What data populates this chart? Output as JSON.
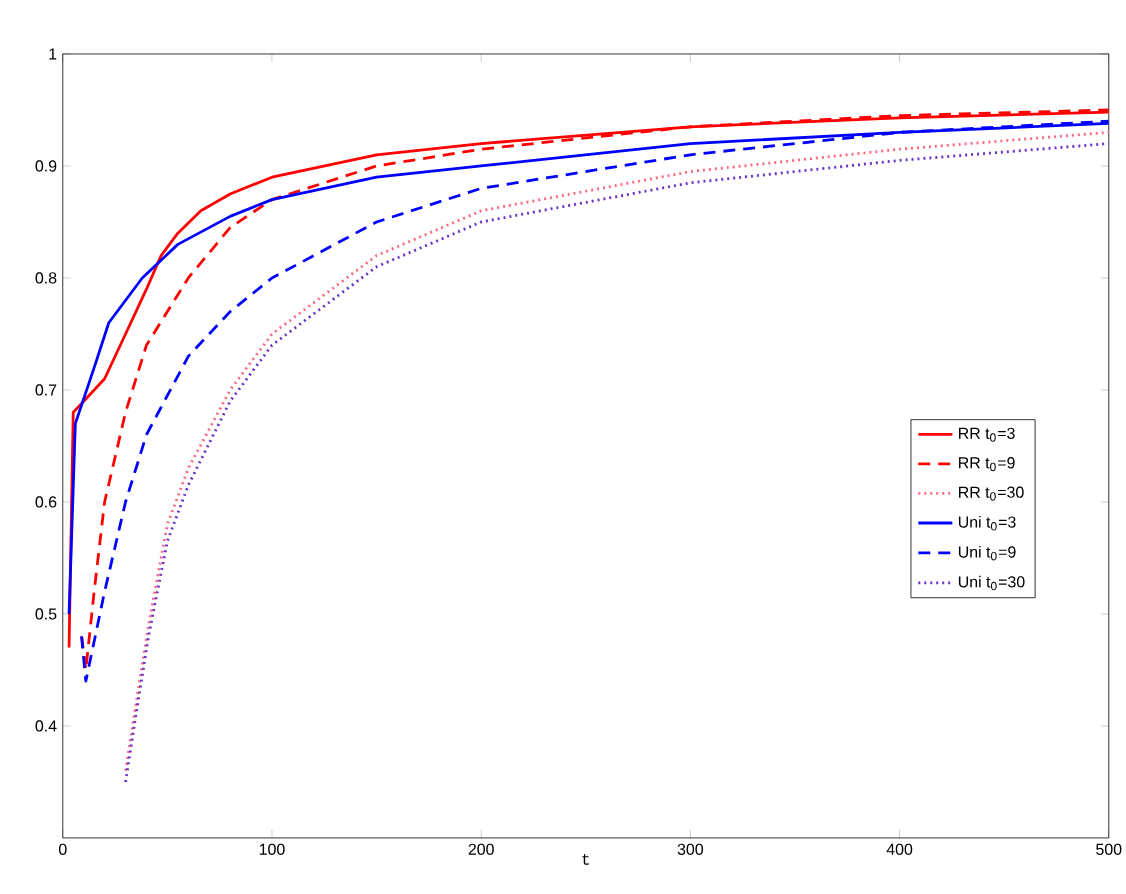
{
  "chart_data": {
    "type": "line",
    "xlabel": "t",
    "xlim": [
      0,
      500
    ],
    "ylim": [
      0.3,
      1
    ],
    "xticks": [
      0,
      100,
      200,
      300,
      400,
      500
    ],
    "yticks": [
      0.4,
      0.5,
      0.6,
      0.7,
      0.8,
      0.9,
      1
    ],
    "grid": false,
    "legend": "right",
    "marker": "none",
    "series": [
      {
        "name": "RR t$_{0}$=3",
        "color": "#ff0000",
        "line_style": "solid",
        "x": [
          3,
          5,
          10,
          20,
          30,
          40,
          47,
          55,
          66,
          80,
          100,
          150,
          200,
          300,
          400,
          500
        ],
        "values": [
          0.47,
          0.68,
          0.69,
          0.71,
          0.75,
          0.79,
          0.82,
          0.84,
          0.86,
          0.875,
          0.89,
          0.91,
          0.92,
          0.935,
          0.943,
          0.948
        ]
      },
      {
        "name": "RR t$_{0}$=9",
        "color": "#ff0000",
        "line_style": "dashed",
        "x": [
          9,
          11,
          15,
          20,
          30,
          40,
          60,
          80,
          100,
          150,
          200,
          300,
          400,
          500
        ],
        "values": [
          0.48,
          0.45,
          0.52,
          0.6,
          0.68,
          0.74,
          0.8,
          0.845,
          0.87,
          0.9,
          0.915,
          0.935,
          0.945,
          0.95
        ]
      },
      {
        "name": "RR t$_{0}$=30",
        "color": "#ff6680",
        "line_style": "dotted",
        "x": [
          30,
          35,
          41,
          50,
          60,
          80,
          100,
          150,
          200,
          300,
          400,
          500
        ],
        "values": [
          0.36,
          0.42,
          0.49,
          0.58,
          0.63,
          0.7,
          0.75,
          0.82,
          0.86,
          0.895,
          0.915,
          0.93
        ]
      },
      {
        "name": "Uni t$_{0}$=3",
        "color": "#0000ff",
        "line_style": "solid",
        "x": [
          3,
          6,
          15,
          22,
          38,
          55,
          80,
          100,
          150,
          200,
          300,
          400,
          500
        ],
        "values": [
          0.5,
          0.67,
          0.72,
          0.76,
          0.8,
          0.83,
          0.855,
          0.87,
          0.89,
          0.9,
          0.92,
          0.93,
          0.938
        ]
      },
      {
        "name": "Uni t$_{0}$=9",
        "color": "#0000ff",
        "line_style": "dashed",
        "x": [
          9,
          11,
          20,
          30,
          40,
          60,
          80,
          100,
          150,
          200,
          300,
          400,
          500
        ],
        "values": [
          0.48,
          0.44,
          0.52,
          0.6,
          0.66,
          0.73,
          0.77,
          0.8,
          0.85,
          0.88,
          0.91,
          0.93,
          0.94
        ]
      },
      {
        "name": "Uni t$_{0}$=30",
        "color": "#6633cc",
        "line_style": "dotted",
        "x": [
          30,
          35,
          41,
          50,
          60,
          80,
          100,
          150,
          200,
          300,
          400,
          500
        ],
        "values": [
          0.35,
          0.41,
          0.48,
          0.565,
          0.615,
          0.69,
          0.74,
          0.81,
          0.85,
          0.885,
          0.905,
          0.92
        ]
      }
    ]
  }
}
